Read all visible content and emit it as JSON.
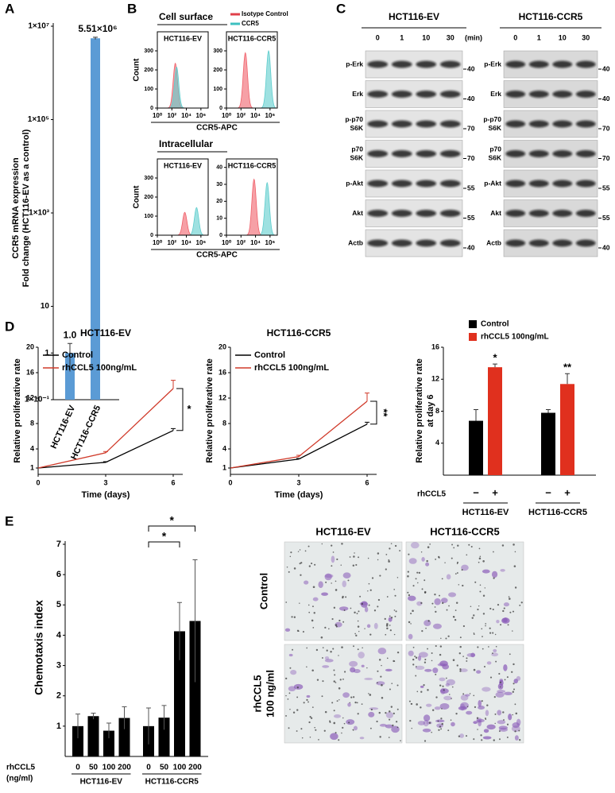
{
  "panel_labels": [
    "A",
    "B",
    "C",
    "D",
    "E"
  ],
  "chart_data": [
    {
      "type": "bar",
      "log": true,
      "ylabel": [
        "CCR5 mRNA expression",
        "Fold change (HCT116-EV as a control)"
      ],
      "categories": [
        "HCT116-EV",
        "HCT116-CCR5"
      ],
      "values": [
        1.0,
        5510000
      ],
      "errors": [
        0.6,
        300000
      ],
      "value_labels": [
        "1.0",
        "5.51×10⁶"
      ],
      "color": "#5b9bd5",
      "ylim": [
        0.1,
        10000000
      ],
      "yticks": [
        {
          "value": 10000000,
          "label": "1×10⁷"
        },
        {
          "value": 100000,
          "label": "1×10⁵"
        },
        {
          "value": 1000,
          "label": "1×10³"
        },
        10,
        1,
        {
          "value": 0.1,
          "label": "1×10⁻¹"
        }
      ]
    },
    {
      "type": "flow",
      "title": "HCT116-EV",
      "log": true,
      "xlim": [
        1,
        10000000
      ],
      "xticks": [
        {
          "value": 1,
          "label": "10⁰"
        },
        {
          "value": 100,
          "label": "10²"
        },
        {
          "value": 10000,
          "label": "10⁴"
        },
        {
          "value": 1000000,
          "label": "10⁶"
        }
      ],
      "ylim": [
        0,
        400
      ],
      "yticks": [
        0,
        100,
        200,
        300
      ],
      "series": [
        {
          "color": "#f0606a",
          "x": [
            300
          ],
          "values": [
            235
          ]
        },
        {
          "color": "#5ecdcd",
          "x": [
            450
          ],
          "values": [
            215
          ]
        }
      ]
    },
    {
      "type": "flow",
      "title": "HCT116-CCR5",
      "log": true,
      "xlim": [
        1,
        10000000
      ],
      "xticks": [
        {
          "value": 1,
          "label": "10⁰"
        },
        {
          "value": 100,
          "label": "10²"
        },
        {
          "value": 10000,
          "label": "10⁴"
        },
        {
          "value": 1000000,
          "label": "10⁶"
        }
      ],
      "ylim": [
        0,
        400
      ],
      "yticks": [
        0,
        100,
        200,
        300
      ],
      "series": [
        {
          "color": "#f0606a",
          "x": [
            400
          ],
          "values": [
            290
          ]
        },
        {
          "color": "#5ecdcd",
          "x": [
            630000
          ],
          "values": [
            300
          ]
        }
      ]
    },
    {
      "type": "flow",
      "title": "HCT116-EV",
      "log": true,
      "xlim": [
        1,
        10000000
      ],
      "xticks": [
        {
          "value": 1,
          "label": "10⁰"
        },
        {
          "value": 100,
          "label": "10²"
        },
        {
          "value": 10000,
          "label": "10⁴"
        },
        {
          "value": 1000000,
          "label": "10⁶"
        }
      ],
      "ylim": [
        0,
        400
      ],
      "yticks": [
        0,
        100,
        200,
        300
      ],
      "series": [
        {
          "color": "#f0606a",
          "x": [
            6000
          ],
          "values": [
            120
          ]
        },
        {
          "color": "#5ecdcd",
          "x": [
            250000
          ],
          "values": [
            145
          ]
        }
      ]
    },
    {
      "type": "flow",
      "title": "HCT116-CCR5",
      "log": true,
      "xlim": [
        1,
        10000000
      ],
      "xticks": [
        {
          "value": 1,
          "label": "10⁰"
        },
        {
          "value": 100,
          "label": "10²"
        },
        {
          "value": 10000,
          "label": "10⁴"
        },
        {
          "value": 1000000,
          "label": "10⁶"
        }
      ],
      "ylim": [
        0,
        45
      ],
      "yticks": [
        0,
        10,
        20,
        30,
        40
      ],
      "series": [
        {
          "color": "#f0606a",
          "x": [
            6300
          ],
          "values": [
            33
          ]
        },
        {
          "color": "#5ecdcd",
          "x": [
            400000
          ],
          "values": [
            31
          ]
        }
      ]
    },
    {
      "type": "line",
      "title": "HCT116-EV",
      "x": [
        0,
        3,
        6
      ],
      "xlim": [
        0,
        6
      ],
      "xticks": [
        0,
        3,
        6
      ],
      "ylim": [
        0,
        20
      ],
      "yticks": [
        1,
        4,
        8,
        12,
        16,
        20
      ],
      "xlabel": "Time (days)",
      "ylabel": "Relative proliferative rate",
      "series": [
        {
          "name": "Control",
          "color": "#000000",
          "values": [
            1,
            1.9,
            6.9
          ],
          "errors": [
            0,
            0.1,
            0.3
          ]
        },
        {
          "name": "rhCCL5 100ng/mL",
          "color": "#d03a2a",
          "values": [
            1,
            3.4,
            13.5
          ],
          "errors": [
            0,
            0.2,
            1.3
          ]
        }
      ],
      "annotation": "*"
    },
    {
      "type": "line",
      "title": "HCT116-CCR5",
      "x": [
        0,
        3,
        6
      ],
      "xlim": [
        0,
        6
      ],
      "xticks": [
        0,
        3,
        6
      ],
      "ylim": [
        0,
        20
      ],
      "yticks": [
        1,
        4,
        8,
        12,
        16,
        20
      ],
      "xlabel": "Time (days)",
      "ylabel": "Relative proliferative rate",
      "series": [
        {
          "name": "Control",
          "color": "#000000",
          "values": [
            1,
            2.4,
            7.9
          ],
          "errors": [
            0,
            0.1,
            0.3
          ]
        },
        {
          "name": "rhCCL5 100ng/mL",
          "color": "#d03a2a",
          "values": [
            1,
            2.8,
            11.5
          ],
          "errors": [
            0,
            0.2,
            1.3
          ]
        }
      ],
      "annotation": "**"
    },
    {
      "type": "bar",
      "ylabel": [
        "Relative proliferative rate",
        "at day 6"
      ],
      "categories": [
        "HCT116-EV",
        "HCT116-CCR5"
      ],
      "ylim": [
        0,
        16
      ],
      "yticks": [
        4,
        8,
        12,
        16
      ],
      "series": [
        {
          "name": "Control",
          "color": "#000000",
          "values": [
            6.8,
            7.8
          ],
          "errors": [
            1.4,
            0.4
          ]
        },
        {
          "name": "rhCCL5 100ng/mL",
          "color": "#e0301e",
          "values": [
            13.5,
            11.4
          ],
          "errors": [
            0.4,
            1.3
          ]
        }
      ],
      "treatment_label": "rhCCL5",
      "treatment_signs": [
        "−",
        "+"
      ],
      "annotations": [
        "*",
        "**"
      ]
    },
    {
      "type": "bar",
      "ylabel": "Chemotaxis index",
      "ylim": [
        0,
        7
      ],
      "yticks": [
        1,
        2,
        3,
        4,
        5,
        6,
        7
      ],
      "categories": [
        "0",
        "50",
        "100",
        "200"
      ],
      "groups": [
        "HCT116-EV",
        "HCT116-CCR5"
      ],
      "xlabel": [
        "rhCCL5",
        "(ng/ml)"
      ],
      "series": [
        {
          "color": "#000000",
          "values": [
            1.0,
            1.33,
            0.85,
            1.27
          ],
          "errors": [
            0.4,
            0.1,
            0.25,
            0.37
          ]
        },
        {
          "color": "#000000",
          "values": [
            1.0,
            1.28,
            4.13,
            4.47
          ],
          "errors": [
            0.6,
            0.4,
            0.95,
            2.02
          ]
        }
      ],
      "annotations": [
        "*",
        "*"
      ]
    }
  ],
  "flow": {
    "row_titles": [
      "Cell surface",
      "Intracellular"
    ],
    "ylabel": "Count",
    "xlabel": "CCR5-APC",
    "legend": [
      {
        "name": "Isotype Control",
        "color": "#e0404a"
      },
      {
        "name": "CCR5",
        "color": "#3cc0c0"
      }
    ]
  },
  "blot": {
    "groups": [
      "HCT116-EV",
      "HCT116-CCR5"
    ],
    "times": [
      0,
      1,
      10,
      30
    ],
    "time_unit": "(min)",
    "rows": [
      {
        "label": [
          "p-Erk"
        ],
        "mw": 40
      },
      {
        "label": [
          "Erk"
        ],
        "mw": 40
      },
      {
        "label": [
          "p-p70",
          "S6K"
        ],
        "mw": 70
      },
      {
        "label": [
          "p70",
          "S6K"
        ],
        "mw": 70
      },
      {
        "label": [
          "p-Akt"
        ],
        "mw": 55
      },
      {
        "label": [
          "Akt"
        ],
        "mw": 55
      },
      {
        "label": [
          "Actb"
        ],
        "mw": 40
      }
    ]
  },
  "micrographs": {
    "columns": [
      "HCT116-EV",
      "HCT116-CCR5"
    ],
    "rows": [
      [
        "Control"
      ],
      [
        "rhCCL5",
        "100 ng/ml"
      ]
    ]
  }
}
